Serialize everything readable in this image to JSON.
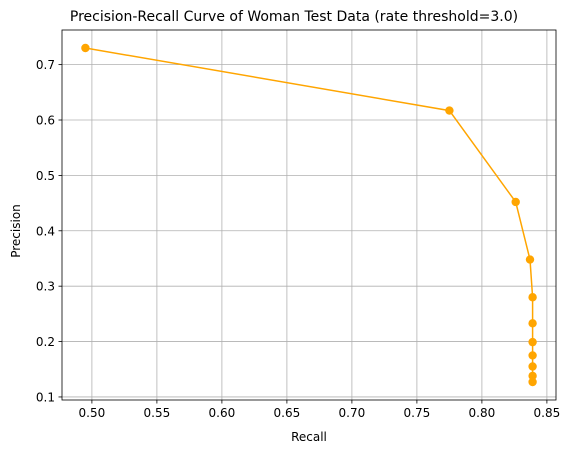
{
  "chart_data": {
    "type": "line",
    "title": "Precision-Recall Curve of Woman Test Data (rate threshold=3.0)",
    "xlabel": "Recall",
    "ylabel": "Precision",
    "xlim": [
      0.477,
      0.857
    ],
    "ylim": [
      0.0945,
      0.7625
    ],
    "xticks": [
      0.5,
      0.55,
      0.6,
      0.65,
      0.7,
      0.75,
      0.8,
      0.85
    ],
    "xtick_labels": [
      "0.50",
      "0.55",
      "0.60",
      "0.65",
      "0.70",
      "0.75",
      "0.80",
      "0.85"
    ],
    "yticks": [
      0.1,
      0.2,
      0.3,
      0.4,
      0.5,
      0.6,
      0.7
    ],
    "ytick_labels": [
      "0.1",
      "0.2",
      "0.3",
      "0.4",
      "0.5",
      "0.6",
      "0.7"
    ],
    "grid": true,
    "series": [
      {
        "color": "#ffa500",
        "marker": "circle",
        "x": [
          0.495,
          0.775,
          0.826,
          0.837,
          0.839,
          0.839,
          0.839,
          0.839,
          0.839,
          0.839,
          0.839
        ],
        "y": [
          0.73,
          0.617,
          0.452,
          0.348,
          0.28,
          0.233,
          0.199,
          0.175,
          0.155,
          0.138,
          0.127
        ]
      }
    ]
  }
}
